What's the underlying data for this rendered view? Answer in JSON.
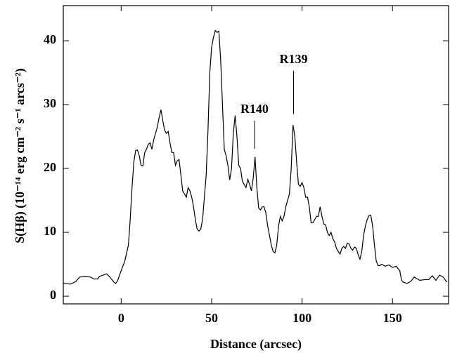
{
  "chart_data": {
    "type": "line",
    "xlabel": "Distance (arcsec)",
    "ylabel": "S(Hβ) (10⁻¹⁴ erg cm⁻² s⁻¹ arcs⁻²)",
    "color": "#000000",
    "xlim": [
      -32,
      181
    ],
    "ylim": [
      -1.2,
      45.5
    ],
    "xticks": [
      0,
      50,
      100,
      150
    ],
    "yticks": [
      0,
      10,
      20,
      30,
      40
    ],
    "annotations": [
      {
        "text": "R140",
        "x": 73.7,
        "y": 23.1
      },
      {
        "text": "R139",
        "x": 95.3,
        "y": 28.5
      }
    ],
    "x": [
      -32,
      -28,
      -25,
      -23,
      -20,
      -17,
      -15,
      -13,
      -12,
      -10,
      -8,
      -6,
      -4,
      -3,
      -2,
      0,
      2,
      4,
      5,
      6,
      7,
      8,
      9,
      10,
      11,
      12,
      13,
      14,
      15,
      16,
      17,
      18,
      19,
      20,
      21,
      22,
      23,
      24,
      25,
      26,
      27,
      28,
      29,
      30,
      31,
      32,
      33,
      34,
      35,
      36,
      37,
      38,
      39,
      40,
      41,
      42,
      43,
      44,
      45,
      46,
      47,
      48,
      49,
      50,
      51,
      52,
      53,
      54,
      55,
      56,
      57,
      58,
      59,
      60,
      61,
      62,
      63,
      64,
      65,
      66,
      67,
      68,
      69,
      70,
      71,
      72,
      73,
      74,
      75,
      76,
      77,
      78,
      79,
      80,
      81,
      82,
      83,
      84,
      85,
      86,
      87,
      88,
      89,
      90,
      91,
      92,
      93,
      94,
      95,
      96,
      97,
      98,
      99,
      100,
      101,
      102,
      103,
      104,
      105,
      106,
      107,
      108,
      109,
      110,
      111,
      112,
      113,
      114,
      115,
      116,
      117,
      118,
      119,
      120,
      121,
      122,
      123,
      124,
      125,
      126,
      127,
      128,
      129,
      130,
      131,
      132,
      133,
      134,
      135,
      136,
      137,
      138,
      139,
      140,
      141,
      142,
      143,
      144,
      146,
      148,
      150,
      152,
      154,
      155,
      156,
      158,
      160,
      162,
      165,
      168,
      170,
      172,
      174,
      176,
      178,
      180
    ],
    "values": [
      2.0,
      1.9,
      2.3,
      3.0,
      3.1,
      3.0,
      2.7,
      2.7,
      3.1,
      3.3,
      3.5,
      2.9,
      2.2,
      2.0,
      2.4,
      4.0,
      5.5,
      8.0,
      12,
      17,
      21,
      22.8,
      22.9,
      22,
      20.5,
      20.4,
      22.5,
      23,
      23.8,
      24,
      23,
      24.5,
      25.5,
      26.5,
      28,
      29.2,
      27.5,
      26,
      25.5,
      25.8,
      24,
      22.5,
      22.5,
      20.5,
      21.2,
      21.4,
      19,
      16.5,
      16,
      15.5,
      17,
      16.5,
      15.5,
      14,
      12,
      10.5,
      10.2,
      10.5,
      12,
      15.5,
      19,
      26,
      35,
      39,
      40.5,
      41.6,
      41.3,
      41.5,
      37,
      30,
      23,
      22,
      20.5,
      18.2,
      20,
      25.5,
      28.3,
      25,
      20.5,
      20,
      18,
      17.5,
      17,
      18.3,
      17.5,
      16.5,
      18.5,
      21.8,
      17,
      13.8,
      13.5,
      14,
      14,
      13,
      11,
      9.5,
      8,
      7,
      6.8,
      8,
      11,
      12.5,
      11.8,
      12.5,
      14,
      15,
      16,
      20,
      26.8,
      25,
      21,
      17.5,
      17.2,
      17.8,
      17,
      15.5,
      15.5,
      14,
      11.5,
      11.5,
      12,
      12.5,
      12.5,
      14,
      12.5,
      11.3,
      11.2,
      10,
      9.5,
      10,
      9,
      8.5,
      7.5,
      7,
      6.6,
      7.5,
      7.8,
      7.5,
      8.3,
      8.2,
      7.5,
      7.2,
      7.7,
      7.5,
      6.5,
      5.8,
      7,
      9.5,
      11,
      12,
      12.6,
      12.7,
      11,
      8,
      5.5,
      4.8,
      4.8,
      5.0,
      4.7,
      4.9,
      4.5,
      4.7,
      4.0,
      2.5,
      2.2,
      2.0,
      2.3,
      3.0,
      2.5,
      2.6,
      2.6,
      3.2,
      2.5,
      3.3,
      3.0,
      2.2
    ]
  }
}
